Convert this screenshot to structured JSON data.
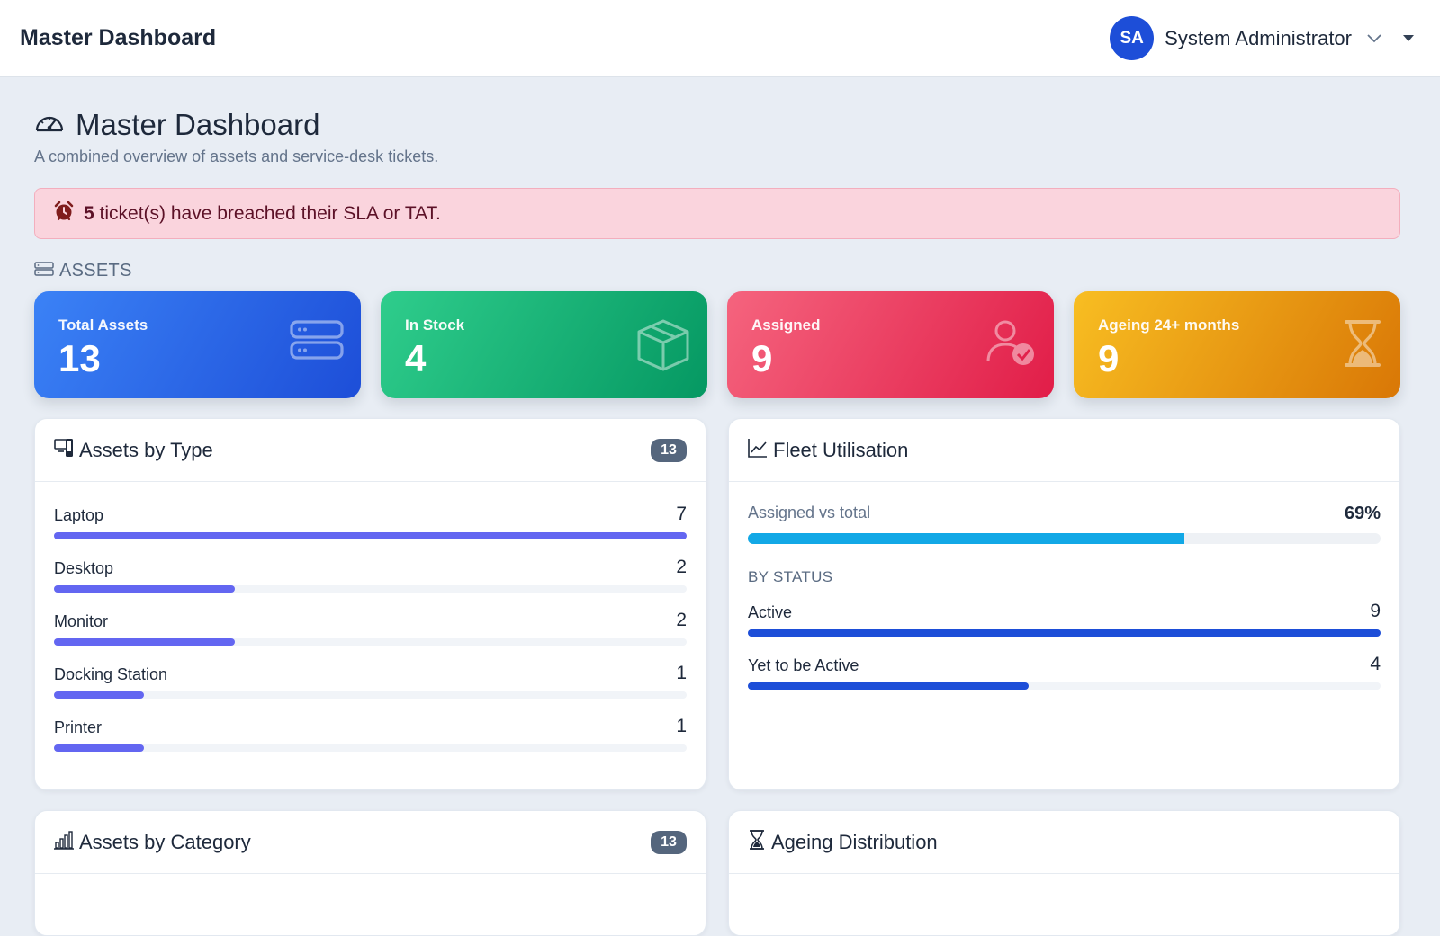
{
  "topbar": {
    "brand": "Master Dashboard",
    "user": {
      "initials": "SA",
      "name": "System Administrator"
    }
  },
  "header": {
    "title": "Master Dashboard",
    "subtitle": "A combined overview of assets and service-desk tickets."
  },
  "alert": {
    "count": "5",
    "text": "ticket(s) have breached their SLA or TAT."
  },
  "assets_section": {
    "label": "ASSETS"
  },
  "kpis": [
    {
      "label": "Total Assets",
      "value": "13",
      "icon": "server-icon",
      "color": "#2563eb"
    },
    {
      "label": "In Stock",
      "value": "4",
      "icon": "box-icon",
      "color": "#10b981"
    },
    {
      "label": "Assigned",
      "value": "9",
      "icon": "user-check-icon",
      "color": "#e11d48"
    },
    {
      "label": "Ageing 24+ months",
      "value": "9",
      "icon": "hourglass-icon",
      "color": "#f59e0b"
    }
  ],
  "assets_by_type": {
    "title": "Assets by Type",
    "badge": "13",
    "max": 7,
    "items": [
      {
        "label": "Laptop",
        "count": "7",
        "value": 7
      },
      {
        "label": "Desktop",
        "count": "2",
        "value": 2
      },
      {
        "label": "Monitor",
        "count": "2",
        "value": 2
      },
      {
        "label": "Docking Station",
        "count": "1",
        "value": 1
      },
      {
        "label": "Printer",
        "count": "1",
        "value": 1
      }
    ]
  },
  "fleet_utilisation": {
    "title": "Fleet Utilisation",
    "assigned_label": "Assigned vs total",
    "assigned_pct": "69%",
    "assigned_fraction": 0.69,
    "status_title": "BY STATUS",
    "max": 9,
    "status": [
      {
        "label": "Active",
        "count": "9",
        "value": 9
      },
      {
        "label": "Yet to be Active",
        "count": "4",
        "value": 4
      }
    ]
  },
  "assets_by_category": {
    "title": "Assets by Category",
    "badge": "13"
  },
  "ageing_distribution": {
    "title": "Ageing Distribution"
  },
  "colors": {
    "accent": "#1d4ed8",
    "type_bar": "#6366f1",
    "utilisation_bar": "#12a8e6",
    "status_bar": "#1d4ed8",
    "alert_bg": "#fad4dd"
  }
}
